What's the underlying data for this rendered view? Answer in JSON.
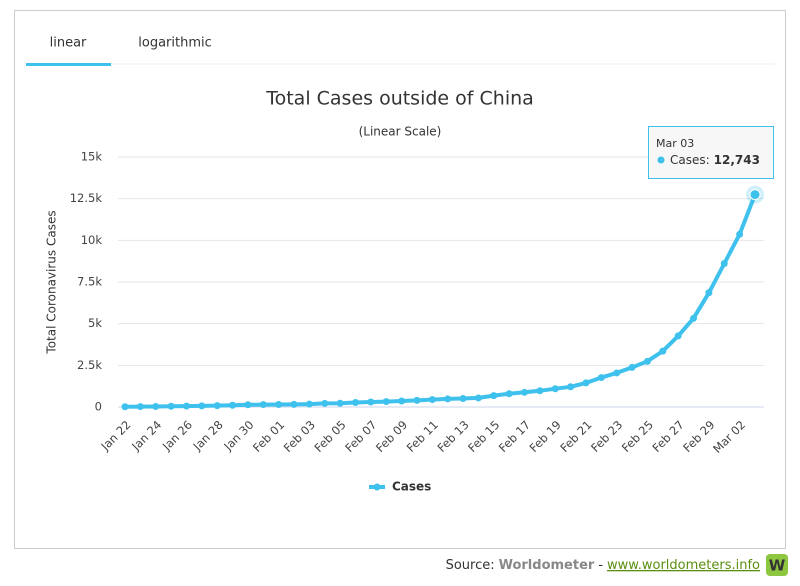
{
  "tabs": [
    "linear",
    "logarithmic"
  ],
  "active_tab": 0,
  "chart_data": {
    "type": "line",
    "title": "Total Cases outside of China",
    "subtitle": "(Linear Scale)",
    "y_label": "Total Coronavirus Cases",
    "categories": [
      "Jan 22",
      null,
      "Jan 24",
      null,
      "Jan 26",
      null,
      "Jan 28",
      null,
      "Jan 30",
      null,
      "Feb 01",
      null,
      "Feb 03",
      null,
      "Feb 05",
      null,
      "Feb 07",
      null,
      "Feb 09",
      null,
      "Feb 11",
      null,
      "Feb 13",
      null,
      "Feb 15",
      null,
      "Feb 17",
      null,
      "Feb 19",
      null,
      "Feb 21",
      null,
      "Feb 23",
      null,
      "Feb 25",
      null,
      "Feb 27",
      null,
      "Feb 29",
      null,
      "Mar 02",
      null
    ],
    "series": [
      {
        "name": "Cases",
        "color": "#3ec1ec",
        "values": [
          14,
          25,
          30,
          46,
          56,
          66,
          84,
          103,
          134,
          145,
          151,
          157,
          176,
          215,
          226,
          272,
          298,
          325,
          358,
          397,
          446,
          485,
          511,
          543,
          681,
          798,
          880,
          974,
          1097,
          1213,
          1446,
          1766,
          2043,
          2378,
          2741,
          3353,
          4264,
          5321,
          6854,
          8612,
          10362,
          12743
        ]
      }
    ],
    "ylim": [
      0,
      15000
    ],
    "yticks": [
      0,
      {
        "value": 2500,
        "label": "2.5k"
      },
      {
        "value": 5000,
        "label": "5k"
      },
      {
        "value": 7500,
        "label": "7.5k"
      },
      {
        "value": 10000,
        "label": "10k"
      },
      {
        "value": 12500,
        "label": "12.5k"
      },
      {
        "value": 15000,
        "label": "15k"
      }
    ],
    "grid": true,
    "tooltip": {
      "title": "Mar 03",
      "series_label": "Cases:",
      "value_label": "12,743"
    }
  },
  "source": {
    "prefix": "Source:",
    "name": "Worldometer",
    "separator": "-",
    "url": "www.worldometers.info",
    "logo": "W"
  }
}
